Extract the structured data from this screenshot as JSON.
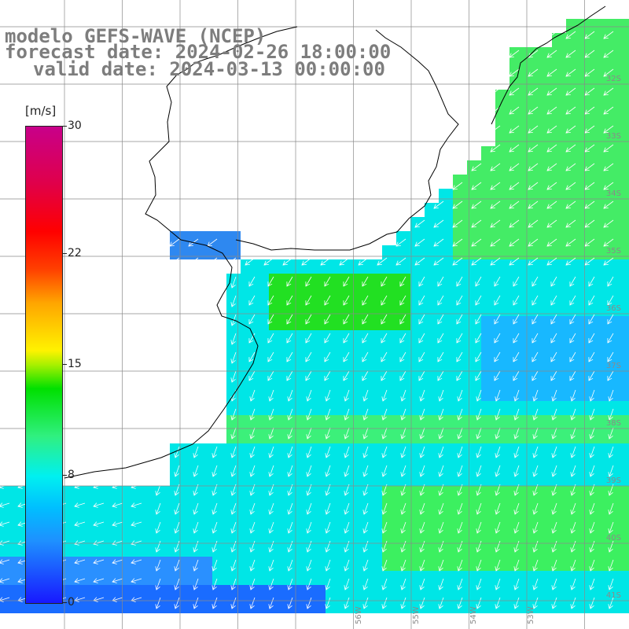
{
  "title": {
    "line1": "modelo GEFS-WAVE (NCEP)",
    "line2": "forecast date: 2024-02-26 18:00:00",
    "line3": "valid date: 2024-03-13 00:00:00"
  },
  "colorbar": {
    "unit": "[m/s]",
    "ticks": [
      {
        "label": "30",
        "value": 30
      },
      {
        "label": "22",
        "value": 22
      },
      {
        "label": "15",
        "value": 15
      },
      {
        "label": "8",
        "value": 8
      },
      {
        "label": "0",
        "value": 0
      }
    ]
  },
  "map": {
    "lat_labels": [
      "32S",
      "33S",
      "34S",
      "35S",
      "36S",
      "37S",
      "38S",
      "39S",
      "40S",
      "41S"
    ],
    "lon_labels": [
      "56W",
      "55W",
      "54W",
      "53W"
    ],
    "colors": {
      "land": "#ffffff",
      "coast": "#000000",
      "grid": "#8a8a8a",
      "arrow": "#ffffff"
    },
    "field": "wind speed and direction over ocean"
  }
}
